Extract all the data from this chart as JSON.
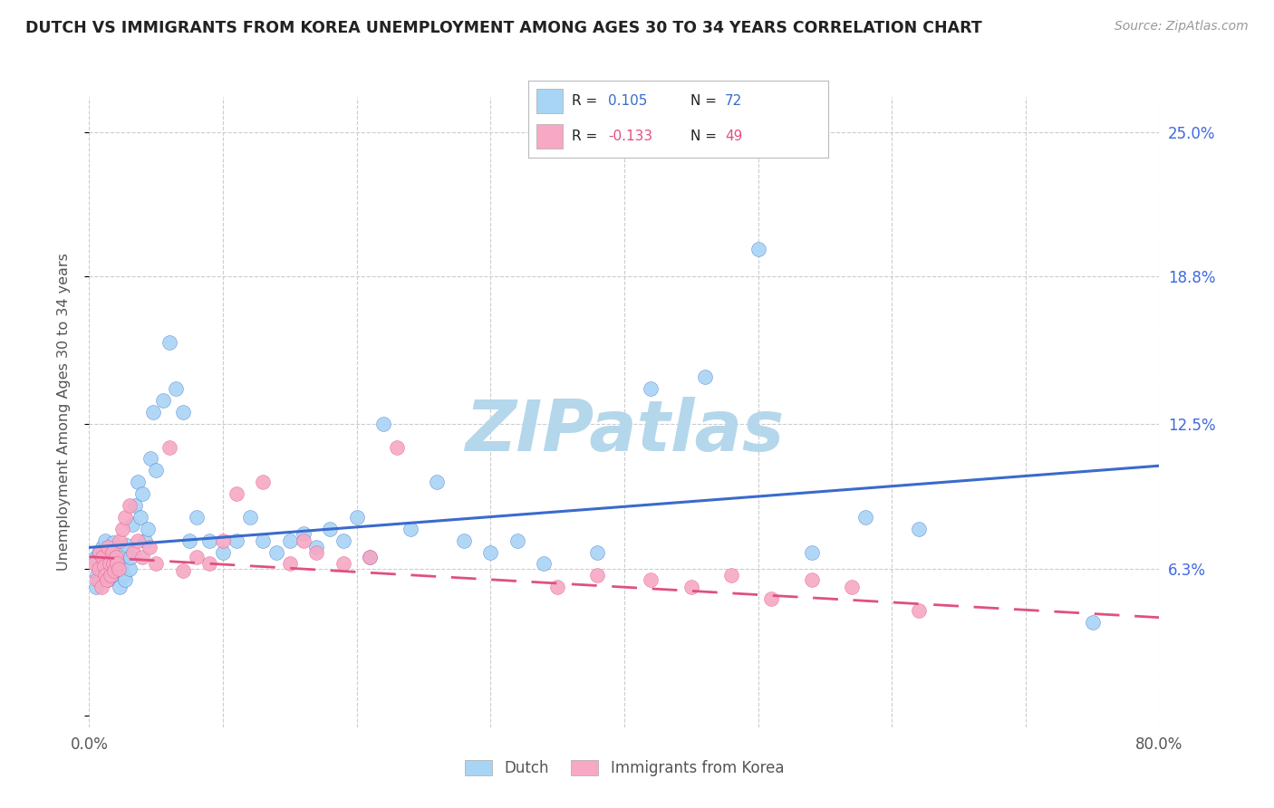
{
  "title": "DUTCH VS IMMIGRANTS FROM KOREA UNEMPLOYMENT AMONG AGES 30 TO 34 YEARS CORRELATION CHART",
  "source": "Source: ZipAtlas.com",
  "ylabel": "Unemployment Among Ages 30 to 34 years",
  "xlim": [
    0.0,
    0.8
  ],
  "ylim": [
    -0.005,
    0.265
  ],
  "plot_ylim": [
    0.0,
    0.25
  ],
  "dutch_R": 0.105,
  "dutch_N": 72,
  "korea_R": -0.133,
  "korea_N": 49,
  "dutch_color": "#a8d4f5",
  "korea_color": "#f7a8c4",
  "trend_dutch_color": "#3a6bcc",
  "trend_korea_color": "#e05080",
  "background_color": "#ffffff",
  "watermark": "ZIPatlas",
  "watermark_color_r": 180,
  "watermark_color_g": 215,
  "watermark_color_b": 235,
  "title_color": "#222222",
  "axis_label_color": "#555555",
  "right_tick_color": "#4169E1",
  "dutch_trend_start_y": 0.072,
  "dutch_trend_end_y": 0.107,
  "korea_trend_start_y": 0.068,
  "korea_trend_end_y": 0.042,
  "dutch_x": [
    0.003,
    0.005,
    0.006,
    0.007,
    0.008,
    0.009,
    0.01,
    0.011,
    0.012,
    0.013,
    0.014,
    0.015,
    0.015,
    0.016,
    0.017,
    0.018,
    0.019,
    0.02,
    0.021,
    0.022,
    0.023,
    0.024,
    0.025,
    0.026,
    0.027,
    0.028,
    0.03,
    0.031,
    0.032,
    0.034,
    0.036,
    0.038,
    0.04,
    0.042,
    0.044,
    0.046,
    0.048,
    0.05,
    0.055,
    0.06,
    0.065,
    0.07,
    0.075,
    0.08,
    0.09,
    0.1,
    0.11,
    0.12,
    0.13,
    0.14,
    0.15,
    0.16,
    0.17,
    0.18,
    0.19,
    0.2,
    0.21,
    0.22,
    0.24,
    0.26,
    0.28,
    0.3,
    0.32,
    0.34,
    0.38,
    0.42,
    0.46,
    0.5,
    0.54,
    0.58,
    0.62,
    0.75
  ],
  "dutch_y": [
    0.067,
    0.055,
    0.06,
    0.07,
    0.058,
    0.063,
    0.072,
    0.068,
    0.075,
    0.064,
    0.058,
    0.062,
    0.071,
    0.065,
    0.068,
    0.074,
    0.06,
    0.066,
    0.063,
    0.069,
    0.055,
    0.071,
    0.065,
    0.06,
    0.058,
    0.073,
    0.063,
    0.068,
    0.082,
    0.09,
    0.1,
    0.085,
    0.095,
    0.075,
    0.08,
    0.11,
    0.13,
    0.105,
    0.135,
    0.16,
    0.14,
    0.13,
    0.075,
    0.085,
    0.075,
    0.07,
    0.075,
    0.085,
    0.075,
    0.07,
    0.075,
    0.078,
    0.072,
    0.08,
    0.075,
    0.085,
    0.068,
    0.125,
    0.08,
    0.1,
    0.075,
    0.07,
    0.075,
    0.065,
    0.07,
    0.14,
    0.145,
    0.2,
    0.07,
    0.085,
    0.08,
    0.04
  ],
  "korea_x": [
    0.004,
    0.006,
    0.007,
    0.008,
    0.009,
    0.01,
    0.011,
    0.012,
    0.013,
    0.014,
    0.015,
    0.016,
    0.017,
    0.018,
    0.019,
    0.02,
    0.021,
    0.022,
    0.023,
    0.025,
    0.027,
    0.03,
    0.033,
    0.036,
    0.04,
    0.045,
    0.05,
    0.06,
    0.07,
    0.08,
    0.09,
    0.1,
    0.11,
    0.13,
    0.15,
    0.16,
    0.17,
    0.19,
    0.21,
    0.23,
    0.35,
    0.38,
    0.42,
    0.45,
    0.48,
    0.51,
    0.54,
    0.57,
    0.62
  ],
  "korea_y": [
    0.065,
    0.058,
    0.063,
    0.07,
    0.055,
    0.068,
    0.064,
    0.06,
    0.058,
    0.072,
    0.065,
    0.06,
    0.07,
    0.065,
    0.062,
    0.068,
    0.065,
    0.063,
    0.075,
    0.08,
    0.085,
    0.09,
    0.07,
    0.075,
    0.068,
    0.072,
    0.065,
    0.115,
    0.062,
    0.068,
    0.065,
    0.075,
    0.095,
    0.1,
    0.065,
    0.075,
    0.07,
    0.065,
    0.068,
    0.115,
    0.055,
    0.06,
    0.058,
    0.055,
    0.06,
    0.05,
    0.058,
    0.055,
    0.045
  ]
}
